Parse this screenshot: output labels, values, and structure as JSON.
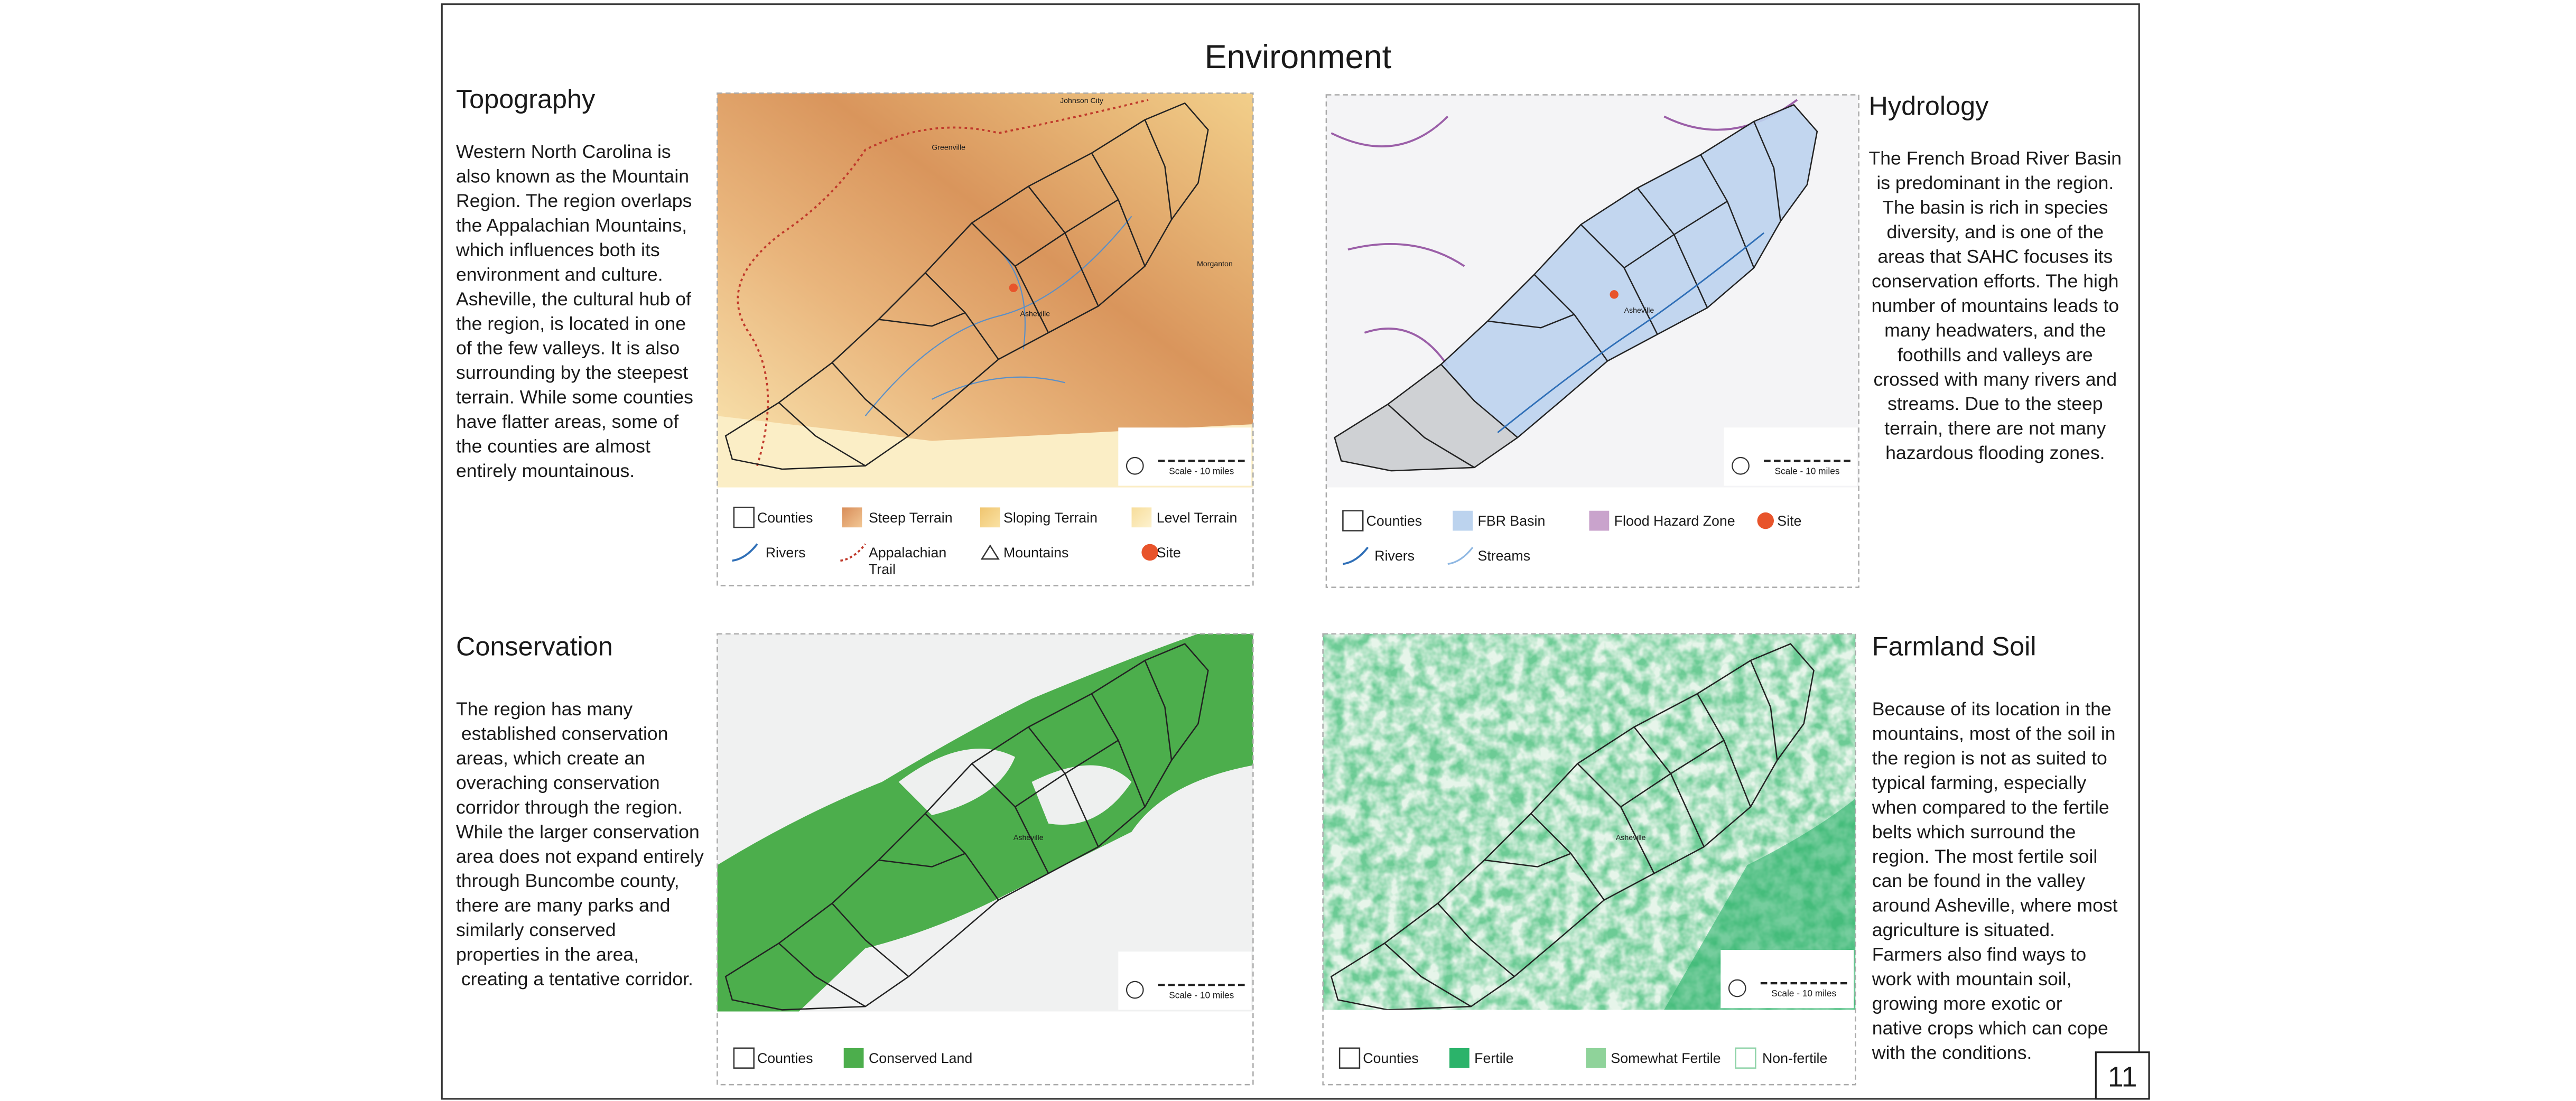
{
  "title": "Environment",
  "page_number": "11",
  "sections": [
    {
      "heading": "Topography",
      "body": [
        "Western North Carolina is",
        "also known as the Mountain",
        "Region. The region overlaps",
        "the Appalachian Mountains,",
        "which influences both its",
        "environment and culture.",
        "Asheville, the cultural hub of",
        "the region, is located in one",
        "of the few valleys. It is also",
        "surrounding by the steepest",
        "terrain. While some counties",
        "have flatter areas, some of",
        "the counties are almost",
        "entirely mountainous."
      ],
      "legend": [
        [
          "Counties",
          "Steep Terrain",
          "Sloping Terrain",
          "Level Terrain"
        ],
        [
          "Rivers",
          "Appalachian Trail",
          "Mountains",
          "Site"
        ]
      ],
      "map_labels": [
        "Johnson City",
        "Greenville",
        "Morganton",
        "Asheville"
      ],
      "scale": "Scale - 10 miles"
    },
    {
      "heading": "Hydrology",
      "body": [
        "The French Broad River Basin",
        "is predominant in the region.",
        "The basin is rich in species",
        "diversity, and is one of the",
        "areas that SAHC focuses its",
        "conservation efforts. The high",
        "number of mountains leads to",
        "many headwaters, and the",
        "foothills and valleys are",
        "crossed with many rivers and",
        "streams. Due to the steep",
        "terrain, there are not many",
        "hazardous flooding zones."
      ],
      "legend": [
        [
          "Counties",
          "FBR Basin",
          "Flood Hazard Zone",
          "Site"
        ],
        [
          "Rivers",
          "Streams"
        ]
      ],
      "map_labels": [
        "Asheville"
      ],
      "scale": "Scale - 10 miles"
    },
    {
      "heading": "Conservation",
      "body": [
        "The region has many",
        " established conservation",
        "areas, which create an",
        "overaching conservation",
        "corridor through the region.",
        "While the larger conservation",
        "area does not expand entirely",
        "through Buncombe county,",
        "there are many parks and",
        "similarly conserved",
        "properties in the area,",
        " creating a tentative corridor."
      ],
      "legend": [
        [
          "Counties",
          "Conserved Land"
        ]
      ],
      "map_labels": [
        "Asheville"
      ],
      "scale": "Scale - 10 miles"
    },
    {
      "heading": "Farmland Soil",
      "body": [
        "Because of its location in the",
        "mountains, most of the soil in",
        "the region is not as suited to",
        "typical farming, especially",
        "when compared to the fertile",
        "belts which surround the",
        "region. The most fertile soil",
        "can be found in the valley",
        "around Asheville, where most",
        "agriculture is situated.",
        "Farmers also find ways to",
        "work with mountain soil,",
        "growing more exotic or",
        "native crops which can cope",
        "with the conditions."
      ],
      "legend": [
        [
          "Counties",
          "Fertile",
          "Somewhat Fertile",
          "Non-fertile"
        ]
      ],
      "map_labels": [
        "Asheville"
      ],
      "scale": "Scale - 10 miles"
    }
  ]
}
